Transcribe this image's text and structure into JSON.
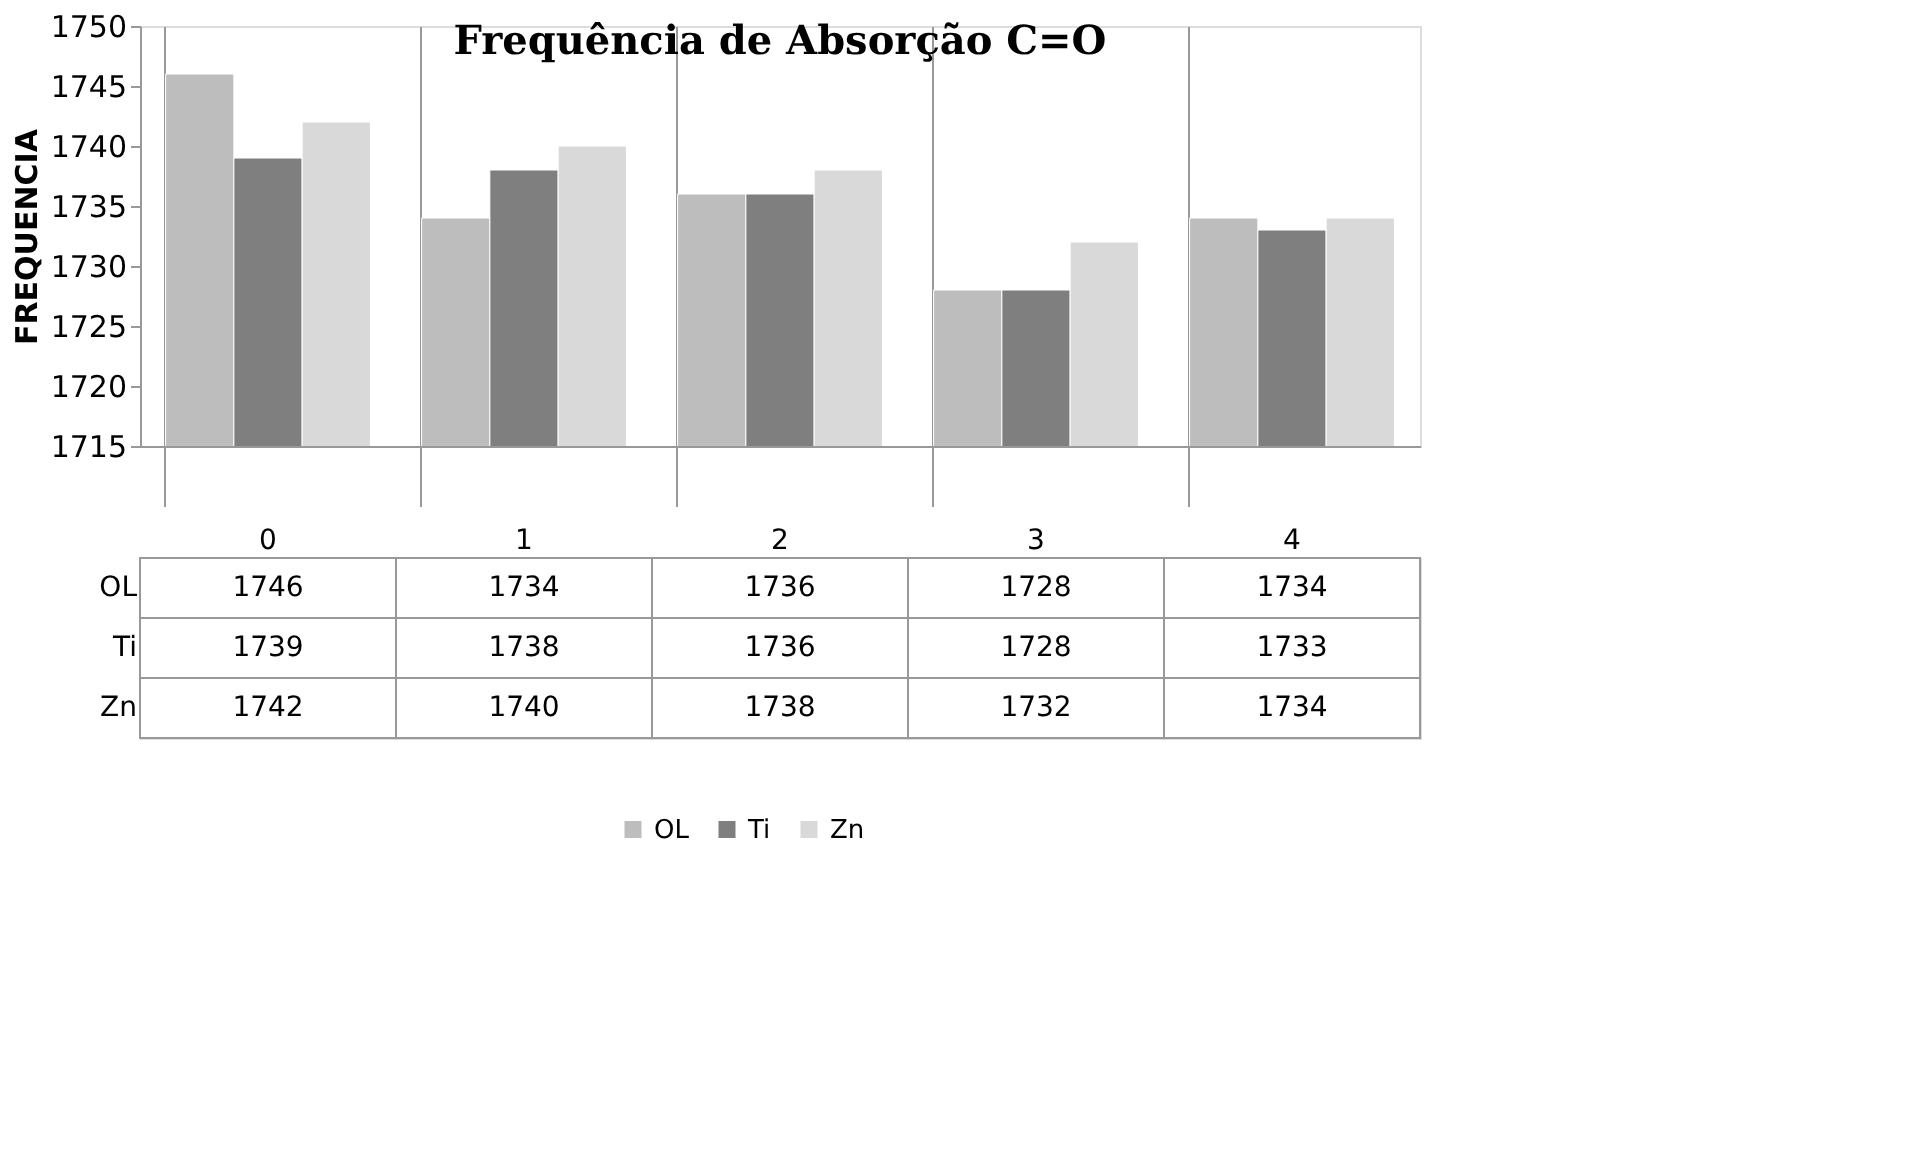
{
  "chart_data": {
    "type": "bar",
    "title": "Frequência de Absorção C=O",
    "ylabel": "FREQUENCIA",
    "categories": [
      "0",
      "1",
      "2",
      "3",
      "4"
    ],
    "series": [
      {
        "name": "OL",
        "color": "#bdbdbd",
        "values": [
          1746,
          1734,
          1736,
          1728,
          1734
        ]
      },
      {
        "name": "Ti",
        "color": "#7f7f7f",
        "values": [
          1739,
          1738,
          1736,
          1728,
          1733
        ]
      },
      {
        "name": "Zn",
        "color": "#d9d9d9",
        "values": [
          1742,
          1740,
          1738,
          1732,
          1734
        ]
      }
    ],
    "ylim": [
      1715,
      1750
    ],
    "yticks": [
      1715,
      1720,
      1725,
      1730,
      1735,
      1740,
      1745,
      1750
    ],
    "grid": false,
    "legend": "bottom",
    "data_labels": true
  }
}
